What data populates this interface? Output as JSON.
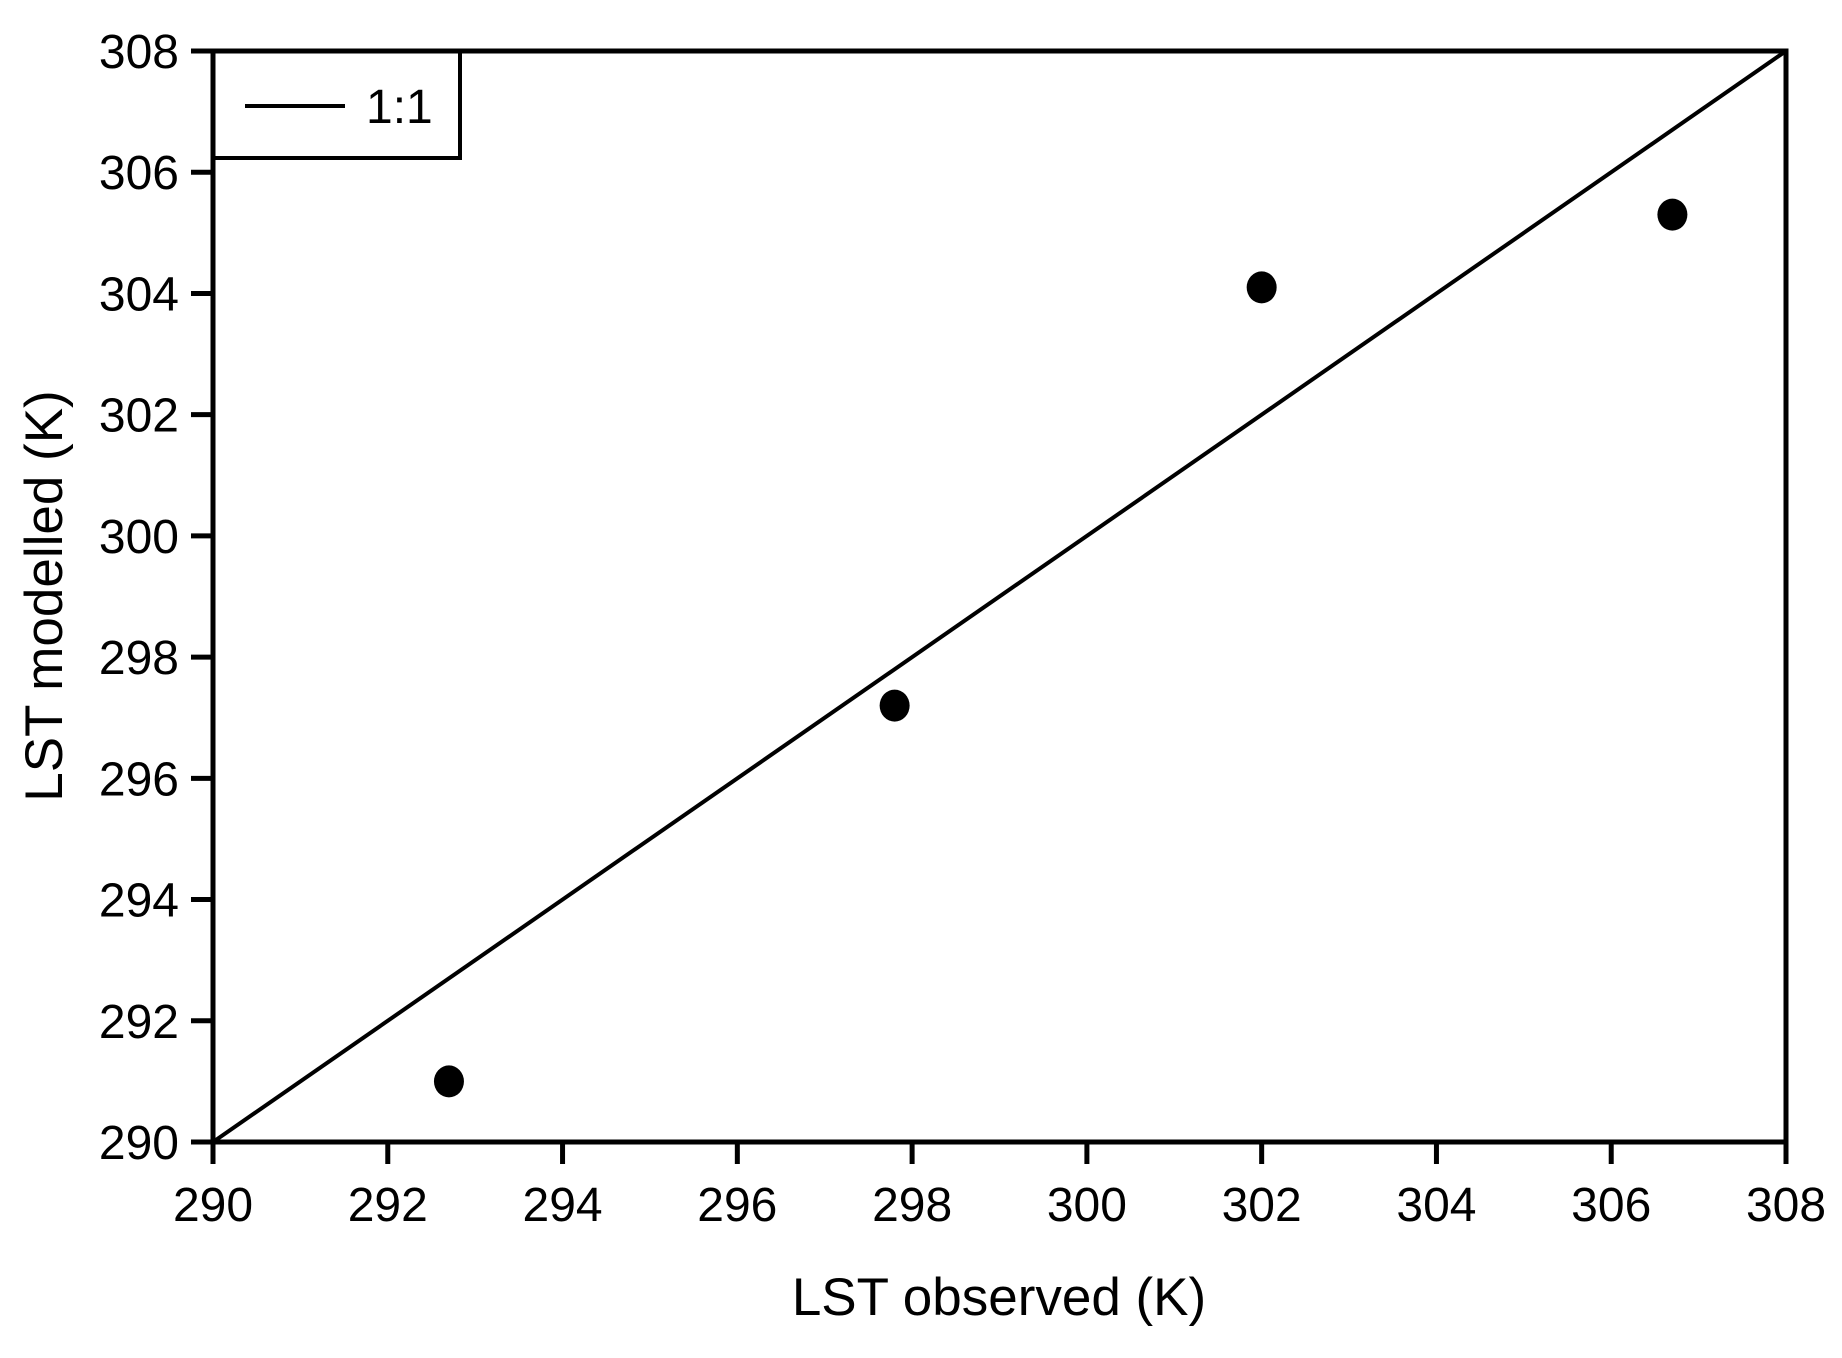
{
  "figure": {
    "background": "#ffffff"
  },
  "chart_data": {
    "type": "scatter",
    "title": "",
    "xlabel": "LST observed (K)",
    "ylabel": "LST modelled (K)",
    "xlim": [
      290,
      308
    ],
    "ylim": [
      290,
      308
    ],
    "xticks": [
      290,
      292,
      294,
      296,
      298,
      300,
      302,
      304,
      306,
      308
    ],
    "yticks": [
      290,
      292,
      294,
      296,
      298,
      300,
      302,
      304,
      306,
      308
    ],
    "grid": false,
    "frame": true,
    "legend": {
      "position": "top-left",
      "entries": [
        {
          "label": "1:1",
          "type": "line"
        }
      ]
    },
    "series": [
      {
        "type": "scatter",
        "marker": "filled-circle",
        "color": "#000000",
        "points": [
          {
            "x": 292.7,
            "y": 291.0
          },
          {
            "x": 297.8,
            "y": 297.2
          },
          {
            "x": 302.0,
            "y": 304.1
          },
          {
            "x": 306.7,
            "y": 305.3
          }
        ]
      },
      {
        "type": "line",
        "name": "1:1",
        "color": "#000000",
        "points": [
          {
            "x": 290,
            "y": 290
          },
          {
            "x": 308,
            "y": 308
          }
        ]
      }
    ],
    "colors": {
      "axis": "#000000",
      "text": "#000000",
      "marker": "#000000",
      "background": "#ffffff"
    }
  }
}
